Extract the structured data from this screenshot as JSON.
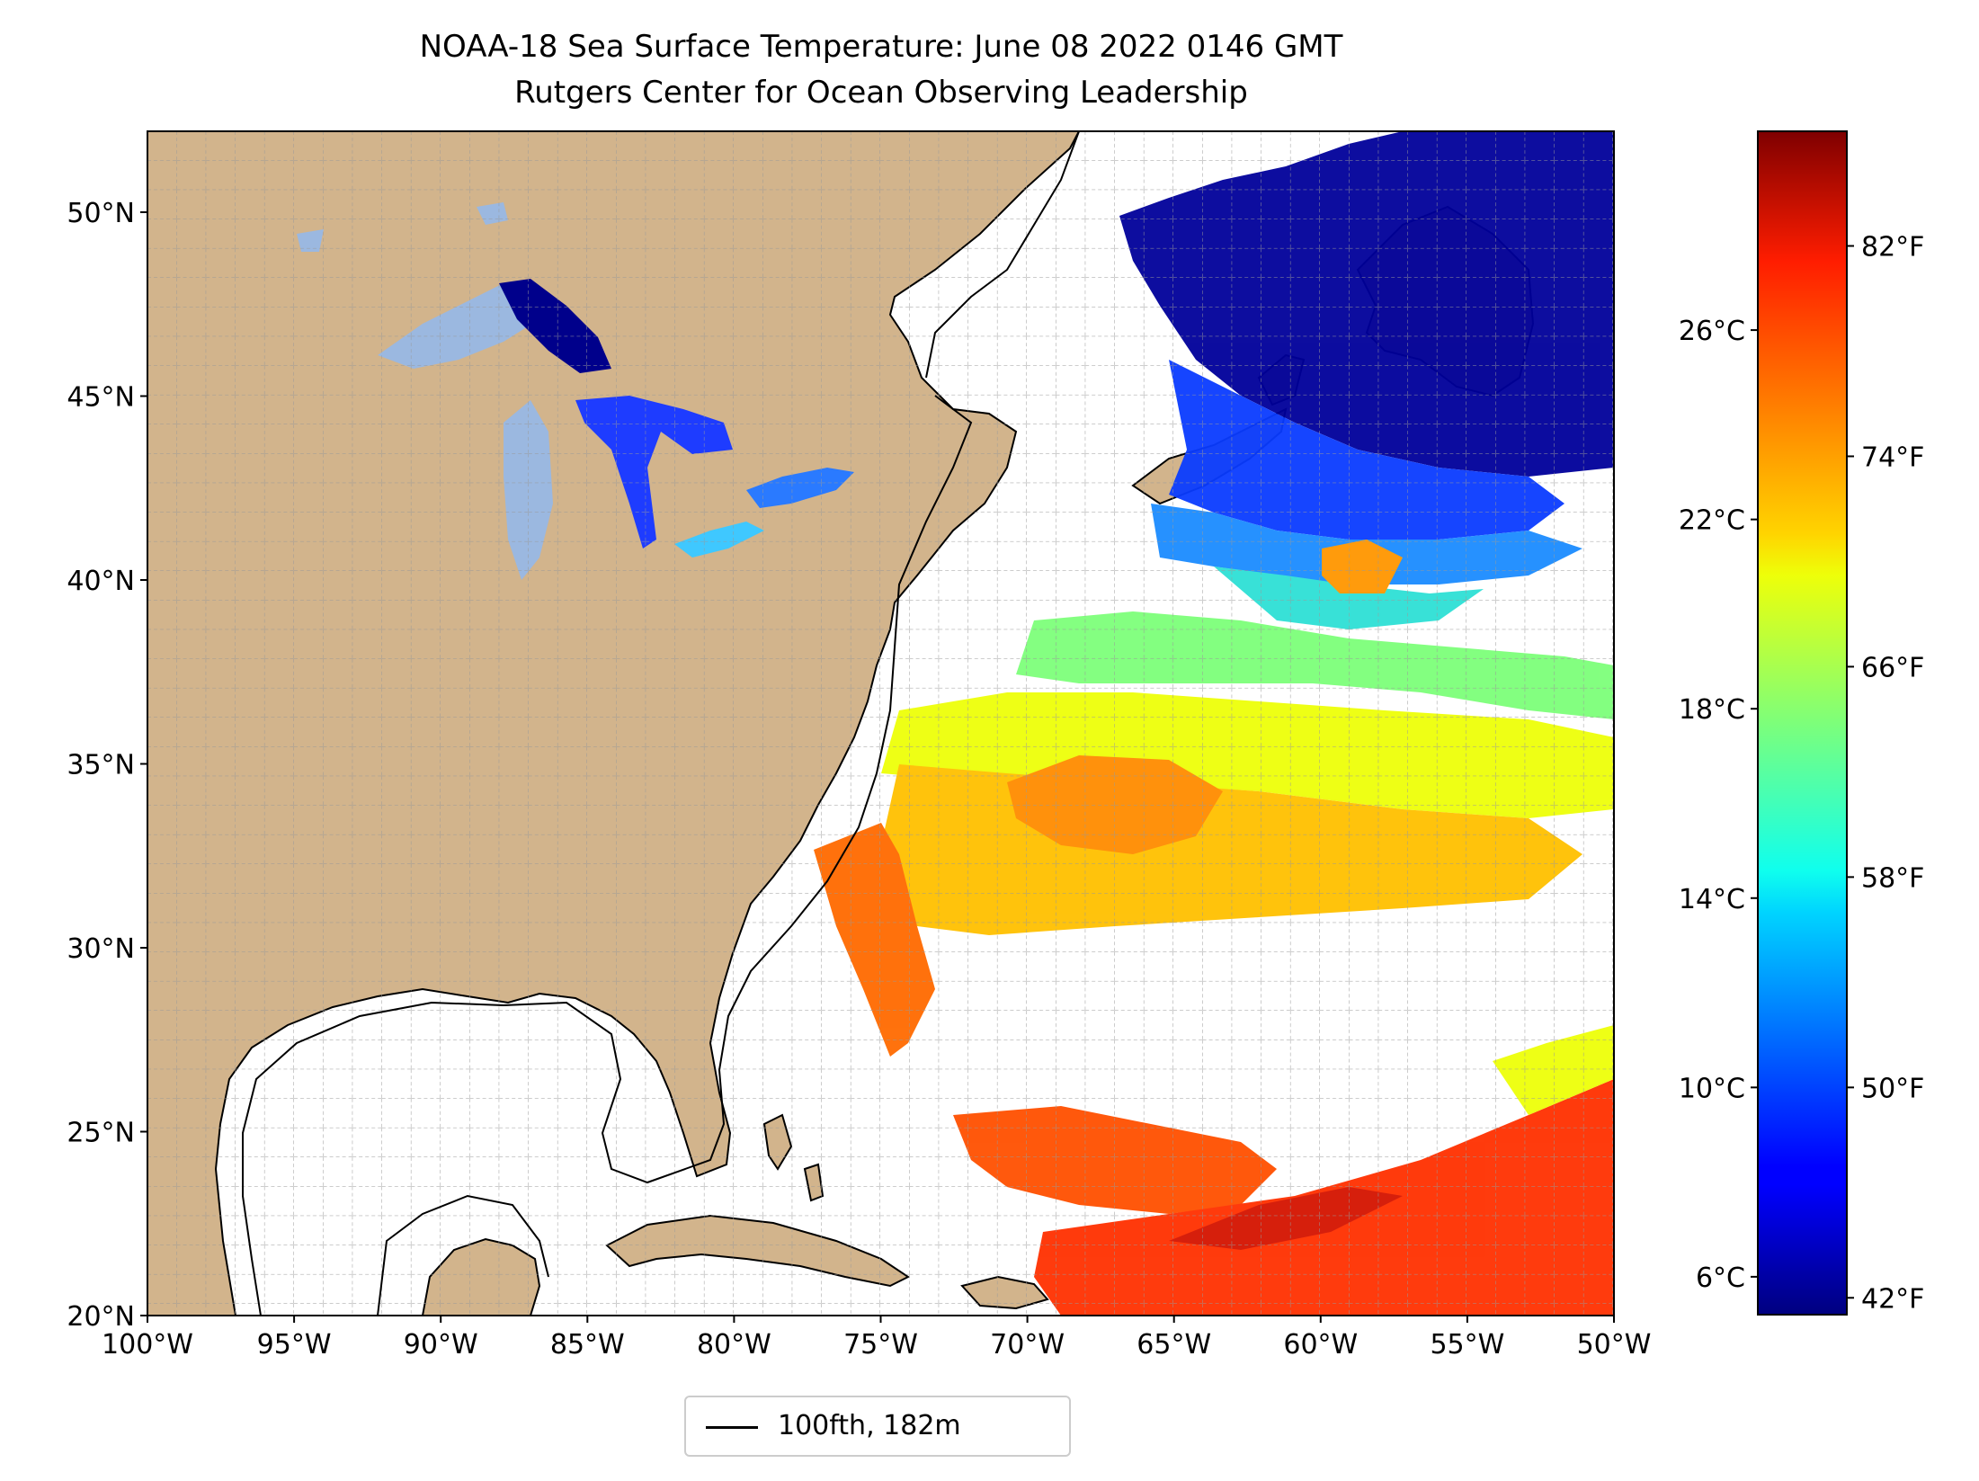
{
  "title": {
    "line1": "NOAA-18 Sea Surface Temperature: June 08 2022 0146 GMT",
    "line2": "Rutgers Center for Ocean Observing Leadership"
  },
  "map": {
    "extent": {
      "lon": [
        -100,
        -50
      ],
      "lat": [
        20,
        52.2
      ]
    },
    "lat_ticks": [
      {
        "value": 50,
        "label": "50°N"
      },
      {
        "value": 45,
        "label": "45°N"
      },
      {
        "value": 40,
        "label": "40°N"
      },
      {
        "value": 35,
        "label": "35°N"
      },
      {
        "value": 30,
        "label": "30°N"
      },
      {
        "value": 25,
        "label": "25°N"
      },
      {
        "value": 20,
        "label": "20°N"
      }
    ],
    "lon_ticks": [
      {
        "value": -100,
        "label": "100°W"
      },
      {
        "value": -95,
        "label": "95°W"
      },
      {
        "value": -90,
        "label": "90°W"
      },
      {
        "value": -85,
        "label": "85°W"
      },
      {
        "value": -80,
        "label": "80°W"
      },
      {
        "value": -75,
        "label": "75°W"
      },
      {
        "value": -70,
        "label": "70°W"
      },
      {
        "value": -65,
        "label": "65°W"
      },
      {
        "value": -60,
        "label": "60°W"
      },
      {
        "value": -55,
        "label": "55°W"
      },
      {
        "value": -50,
        "label": "50°W"
      }
    ],
    "gridlines": true,
    "colors": {
      "land": "#d2b48c",
      "lakes": "#9bb8e0",
      "ocean_no_data": "#ffffff",
      "border": "#000000"
    }
  },
  "colorbar": {
    "colormap": "jet",
    "celsius_range": [
      5.2,
      30.2
    ],
    "celsius_ticks": [
      {
        "value": 6,
        "label": "6°C"
      },
      {
        "value": 10,
        "label": "10°C"
      },
      {
        "value": 14,
        "label": "14°C"
      },
      {
        "value": 18,
        "label": "18°C"
      },
      {
        "value": 22,
        "label": "22°C"
      },
      {
        "value": 26,
        "label": "26°C"
      }
    ],
    "fahrenheit_ticks": [
      {
        "value": 42,
        "label": "42°F"
      },
      {
        "value": 50,
        "label": "50°F"
      },
      {
        "value": 58,
        "label": "58°F"
      },
      {
        "value": 66,
        "label": "66°F"
      },
      {
        "value": 74,
        "label": "74°F"
      },
      {
        "value": 82,
        "label": "82°F"
      }
    ]
  },
  "legend": {
    "label": "100fth, 182m",
    "line_color": "#000000"
  }
}
